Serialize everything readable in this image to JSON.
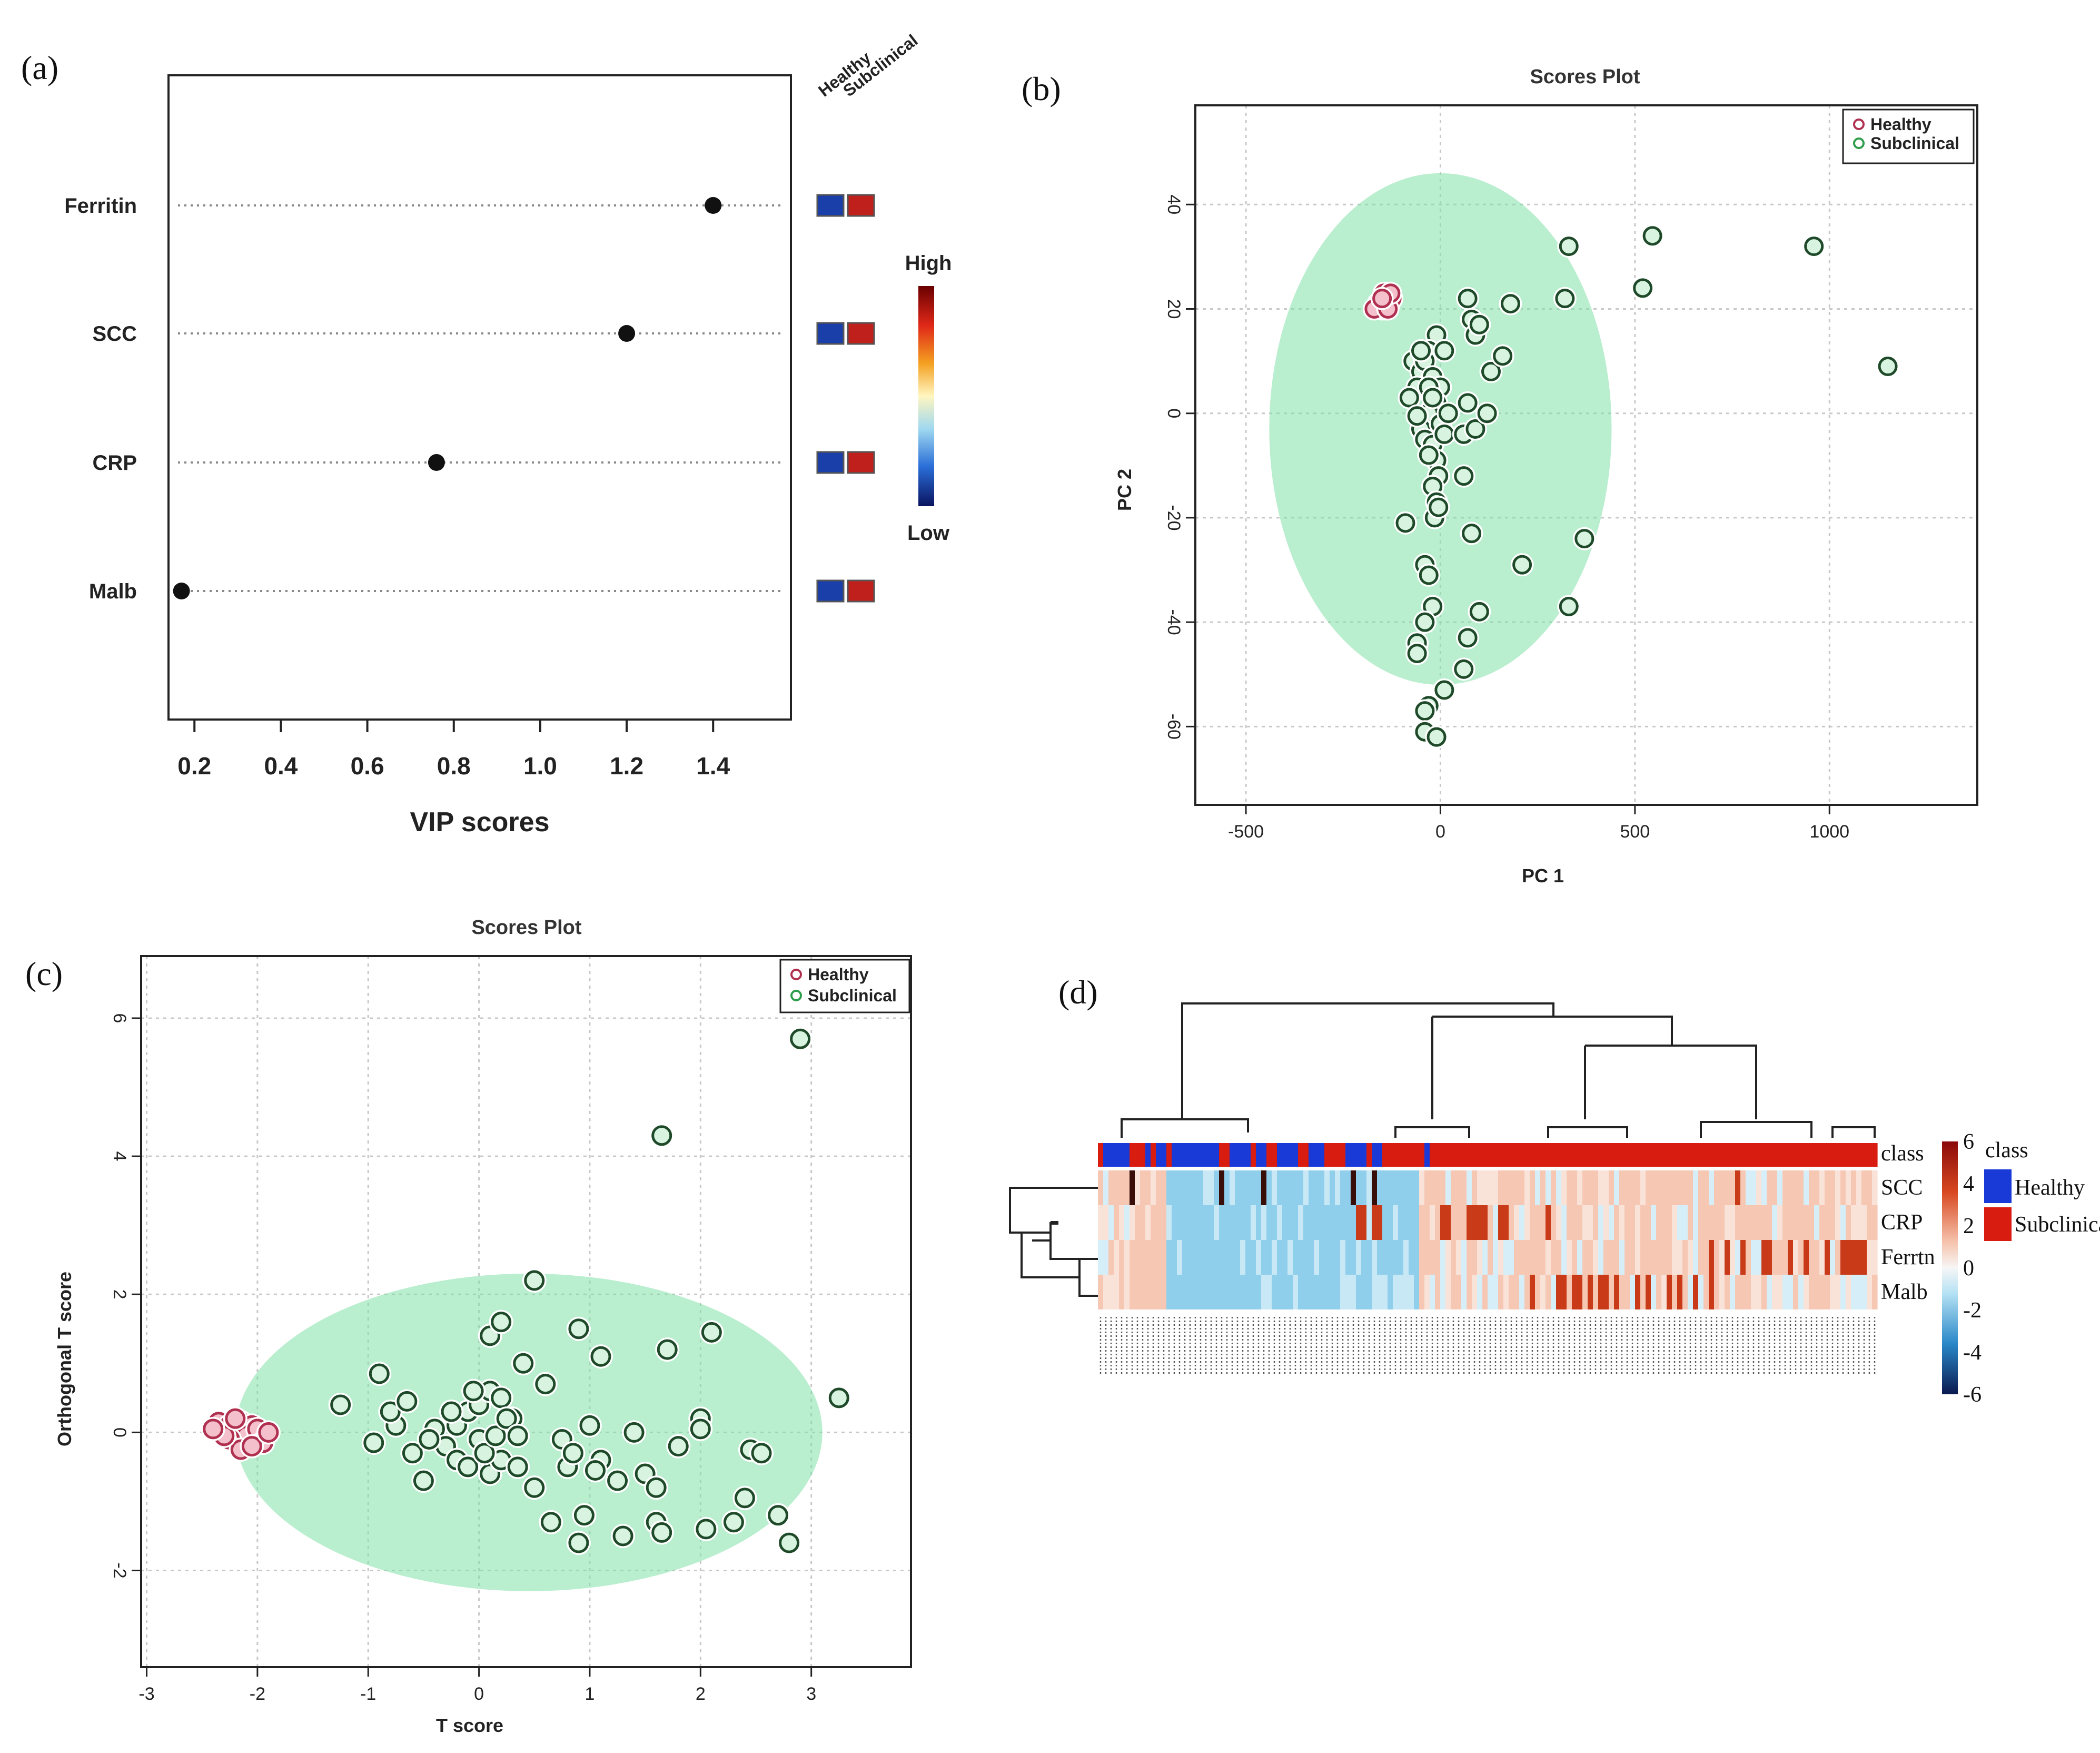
{
  "panel_labels": [
    "(a)",
    "(b)",
    "(c)",
    "(d)"
  ],
  "colors": {
    "healthy": "#e0607a",
    "subclinical": "#2e9e4c",
    "ellipse": "#7fe0a8",
    "low": "#1a3fa8",
    "high": "#c0201c",
    "heat_neg": "#7cc6e8",
    "heat_pos": "#f0a890"
  },
  "chart_data": [
    {
      "id": "a",
      "type": "scatter",
      "subtype": "VIP dot plot",
      "xlabel": "VIP scores",
      "xticks": [
        "0.2",
        "0.4",
        "0.6",
        "0.8",
        "1.0",
        "1.2",
        "1.4"
      ],
      "xlim": [
        0.14,
        1.58
      ],
      "features": [
        "Ferritin",
        "SCC",
        "CRP",
        "Malb"
      ],
      "values": [
        1.4,
        1.2,
        0.76,
        0.17
      ],
      "group_headers": [
        "Healthy",
        "Subclinical"
      ],
      "group_levels": [
        [
          "low",
          "high"
        ],
        [
          "low",
          "high"
        ],
        [
          "low",
          "high"
        ],
        [
          "low",
          "high"
        ]
      ],
      "colorbar": {
        "high": "High",
        "low": "Low"
      }
    },
    {
      "id": "b",
      "type": "scatter",
      "title": "Scores Plot",
      "xlabel": "PC 1",
      "ylabel": "PC 2",
      "xticks": [
        "-500",
        "0",
        "500",
        "1000"
      ],
      "yticks": [
        "-60",
        "-40",
        "-20",
        "0",
        "20",
        "40"
      ],
      "xlim": [
        -630,
        1380
      ],
      "ylim": [
        -75,
        59
      ],
      "legend": [
        "Healthy",
        "Subclinical"
      ],
      "legend_position": "top-right",
      "ellipse": {
        "cx": 0,
        "cy": -3,
        "rx": 440,
        "ry": 49
      },
      "series": [
        {
          "name": "Healthy",
          "points": [
            [
              -150,
              20
            ],
            [
              -145,
              22
            ],
            [
              -140,
              21
            ],
            [
              -135,
              23
            ],
            [
              -130,
              22
            ],
            [
              -155,
              21
            ],
            [
              -140,
              20
            ],
            [
              -132,
              21
            ],
            [
              -125,
              22
            ],
            [
              -145,
              23
            ],
            [
              -160,
              21
            ],
            [
              -170,
              20
            ],
            [
              -135,
              20
            ],
            [
              -128,
              23
            ],
            [
              -150,
              22
            ]
          ]
        },
        {
          "name": "Subclinical",
          "points": [
            [
              330,
              32
            ],
            [
              545,
              34
            ],
            [
              960,
              32
            ],
            [
              1150,
              9
            ],
            [
              520,
              24
            ],
            [
              320,
              22
            ],
            [
              180,
              21
            ],
            [
              70,
              22
            ],
            [
              80,
              18
            ],
            [
              90,
              15
            ],
            [
              100,
              17
            ],
            [
              -10,
              15
            ],
            [
              -30,
              12
            ],
            [
              10,
              12
            ],
            [
              -70,
              10
            ],
            [
              -50,
              8
            ],
            [
              -40,
              10
            ],
            [
              -60,
              5
            ],
            [
              -80,
              3
            ],
            [
              -20,
              7
            ],
            [
              0,
              5
            ],
            [
              -10,
              2
            ],
            [
              -30,
              0
            ],
            [
              -50,
              -3
            ],
            [
              -40,
              -5
            ],
            [
              -20,
              -6
            ],
            [
              0,
              -2
            ],
            [
              20,
              0
            ],
            [
              -10,
              -9
            ],
            [
              -30,
              -8
            ],
            [
              -5,
              -12
            ],
            [
              10,
              -4
            ],
            [
              60,
              -4
            ],
            [
              70,
              2
            ],
            [
              90,
              -3
            ],
            [
              120,
              0
            ],
            [
              130,
              8
            ],
            [
              160,
              11
            ],
            [
              -20,
              -14
            ],
            [
              -10,
              -17
            ],
            [
              -15,
              -20
            ],
            [
              -5,
              -18
            ],
            [
              60,
              -12
            ],
            [
              80,
              -23
            ],
            [
              -90,
              -21
            ],
            [
              -40,
              -29
            ],
            [
              -30,
              -31
            ],
            [
              -20,
              -37
            ],
            [
              -40,
              -40
            ],
            [
              -60,
              -44
            ],
            [
              -60,
              -46
            ],
            [
              70,
              -43
            ],
            [
              100,
              -38
            ],
            [
              210,
              -29
            ],
            [
              330,
              -37
            ],
            [
              370,
              -24
            ],
            [
              60,
              -49
            ],
            [
              10,
              -53
            ],
            [
              -30,
              -56
            ],
            [
              -40,
              -57
            ],
            [
              -40,
              -61
            ],
            [
              -10,
              -62
            ],
            [
              -60,
              -0.5
            ],
            [
              -30,
              5
            ],
            [
              -50,
              12
            ],
            [
              -20,
              3
            ]
          ]
        }
      ]
    },
    {
      "id": "c",
      "type": "scatter",
      "title": "Scores Plot",
      "xlabel": "T score",
      "ylabel": "Orthogonal T score",
      "xticks": [
        "-3",
        "-2",
        "-1",
        "0",
        "1",
        "2",
        "3"
      ],
      "yticks": [
        "-2",
        "0",
        "2",
        "4",
        "6"
      ],
      "xlim": [
        -3.05,
        3.9
      ],
      "ylim": [
        -3.4,
        6.9
      ],
      "legend": [
        "Healthy",
        "Subclinical"
      ],
      "legend_position": "top-right",
      "ellipse": {
        "cx": 0.45,
        "cy": 0.0,
        "rx": 2.65,
        "ry": 2.3
      },
      "series": [
        {
          "name": "Healthy",
          "points": [
            [
              -2.35,
              0.15
            ],
            [
              -2.25,
              0.1
            ],
            [
              -2.15,
              0.15
            ],
            [
              -2.05,
              0.1
            ],
            [
              -2.2,
              0.0
            ],
            [
              -2.1,
              -0.05
            ],
            [
              -2.0,
              0.05
            ],
            [
              -1.95,
              -0.15
            ],
            [
              -2.25,
              -0.1
            ],
            [
              -2.15,
              -0.25
            ],
            [
              -2.3,
              -0.05
            ],
            [
              -2.05,
              -0.2
            ],
            [
              -1.9,
              0.0
            ],
            [
              -2.2,
              0.2
            ],
            [
              -2.4,
              0.05
            ]
          ]
        },
        {
          "name": "Subclinical",
          "points": [
            [
              2.9,
              5.7
            ],
            [
              1.65,
              4.3
            ],
            [
              0.5,
              2.2
            ],
            [
              3.25,
              0.5
            ],
            [
              -1.25,
              0.4
            ],
            [
              -0.9,
              0.85
            ],
            [
              -0.95,
              -0.15
            ],
            [
              -0.75,
              0.1
            ],
            [
              -0.6,
              -0.3
            ],
            [
              -0.5,
              -0.7
            ],
            [
              -0.4,
              0.05
            ],
            [
              -0.3,
              -0.2
            ],
            [
              -0.2,
              0.1
            ],
            [
              -0.1,
              0.3
            ],
            [
              0.0,
              0.4
            ],
            [
              0.1,
              0.6
            ],
            [
              0.2,
              0.5
            ],
            [
              0.3,
              0.2
            ],
            [
              0.1,
              -0.6
            ],
            [
              0.2,
              -0.4
            ],
            [
              0.0,
              -0.1
            ],
            [
              -0.2,
              -0.4
            ],
            [
              -0.1,
              -0.5
            ],
            [
              0.35,
              -0.5
            ],
            [
              0.5,
              -0.8
            ],
            [
              0.65,
              -1.3
            ],
            [
              0.8,
              -0.5
            ],
            [
              0.9,
              -1.6
            ],
            [
              0.95,
              -1.2
            ],
            [
              1.0,
              0.1
            ],
            [
              1.1,
              -0.4
            ],
            [
              1.25,
              -0.7
            ],
            [
              1.3,
              -1.5
            ],
            [
              1.4,
              0.0
            ],
            [
              1.5,
              -0.6
            ],
            [
              1.6,
              -1.3
            ],
            [
              1.65,
              -1.45
            ],
            [
              1.7,
              1.2
            ],
            [
              1.6,
              -0.8
            ],
            [
              2.0,
              0.2
            ],
            [
              2.05,
              -1.4
            ],
            [
              2.1,
              1.45
            ],
            [
              2.3,
              -1.3
            ],
            [
              2.4,
              -0.95
            ],
            [
              2.45,
              -0.25
            ],
            [
              2.55,
              -0.3
            ],
            [
              2.7,
              -1.2
            ],
            [
              2.8,
              -1.6
            ],
            [
              0.6,
              0.7
            ],
            [
              0.9,
              1.5
            ],
            [
              0.1,
              1.4
            ],
            [
              0.2,
              1.6
            ],
            [
              0.4,
              1.0
            ],
            [
              1.1,
              1.1
            ],
            [
              0.05,
              -0.3
            ],
            [
              0.15,
              -0.05
            ],
            [
              -0.25,
              0.3
            ],
            [
              -0.05,
              0.6
            ],
            [
              0.25,
              0.2
            ],
            [
              0.35,
              -0.05
            ],
            [
              -0.45,
              -0.1
            ],
            [
              0.75,
              -0.1
            ],
            [
              1.05,
              -0.55
            ],
            [
              0.85,
              -0.3
            ],
            [
              1.8,
              -0.2
            ],
            [
              2.0,
              0.05
            ],
            [
              -0.8,
              0.3
            ],
            [
              -0.65,
              0.45
            ]
          ]
        }
      ]
    },
    {
      "id": "d",
      "type": "heatmap",
      "rows": [
        "SCC",
        "CRP",
        "Ferritin",
        "Malb"
      ],
      "row_display": [
        "SCC",
        "CRP",
        "Ferrtn",
        "Malb"
      ],
      "annotation_label": "class",
      "legend_title": "class",
      "legend_classes": [
        "Healthy",
        "Subclinical"
      ],
      "colorbar_ticks": [
        "6",
        "4",
        "2",
        "0",
        "-2",
        "-4",
        "-6"
      ],
      "value_range": [
        -6,
        6
      ]
    }
  ]
}
